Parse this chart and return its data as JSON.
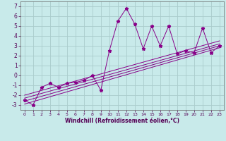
{
  "xlabel": "Windchill (Refroidissement éolien,°C)",
  "bg_color": "#c8eaea",
  "grid_color": "#aacccc",
  "line_color": "#880088",
  "xlim": [
    -0.5,
    23.5
  ],
  "ylim": [
    -3.5,
    7.5
  ],
  "xticks": [
    0,
    1,
    2,
    3,
    4,
    5,
    6,
    7,
    8,
    9,
    10,
    11,
    12,
    13,
    14,
    15,
    16,
    17,
    18,
    19,
    20,
    21,
    22,
    23
  ],
  "yticks": [
    -3,
    -2,
    -1,
    0,
    1,
    2,
    3,
    4,
    5,
    6,
    7
  ],
  "series1_x": [
    0,
    1,
    2,
    3,
    4,
    5,
    6,
    7,
    8,
    9,
    10,
    11,
    12,
    13,
    14,
    15,
    16,
    17,
    18,
    19,
    20,
    21,
    22,
    23
  ],
  "series1_y": [
    -2.5,
    -3.0,
    -1.2,
    -0.8,
    -1.2,
    -0.8,
    -0.7,
    -0.5,
    0.0,
    -1.5,
    2.5,
    5.5,
    6.8,
    5.2,
    2.7,
    5.0,
    3.0,
    5.0,
    2.2,
    2.5,
    2.3,
    4.8,
    2.3,
    3.0
  ],
  "reg_lines": [
    {
      "x": [
        0,
        23
      ],
      "y": [
        -2.9,
        2.8
      ]
    },
    {
      "x": [
        0,
        23
      ],
      "y": [
        -2.6,
        3.0
      ]
    },
    {
      "x": [
        0,
        23
      ],
      "y": [
        -2.3,
        3.2
      ]
    },
    {
      "x": [
        0,
        23
      ],
      "y": [
        -2.0,
        3.5
      ]
    }
  ]
}
